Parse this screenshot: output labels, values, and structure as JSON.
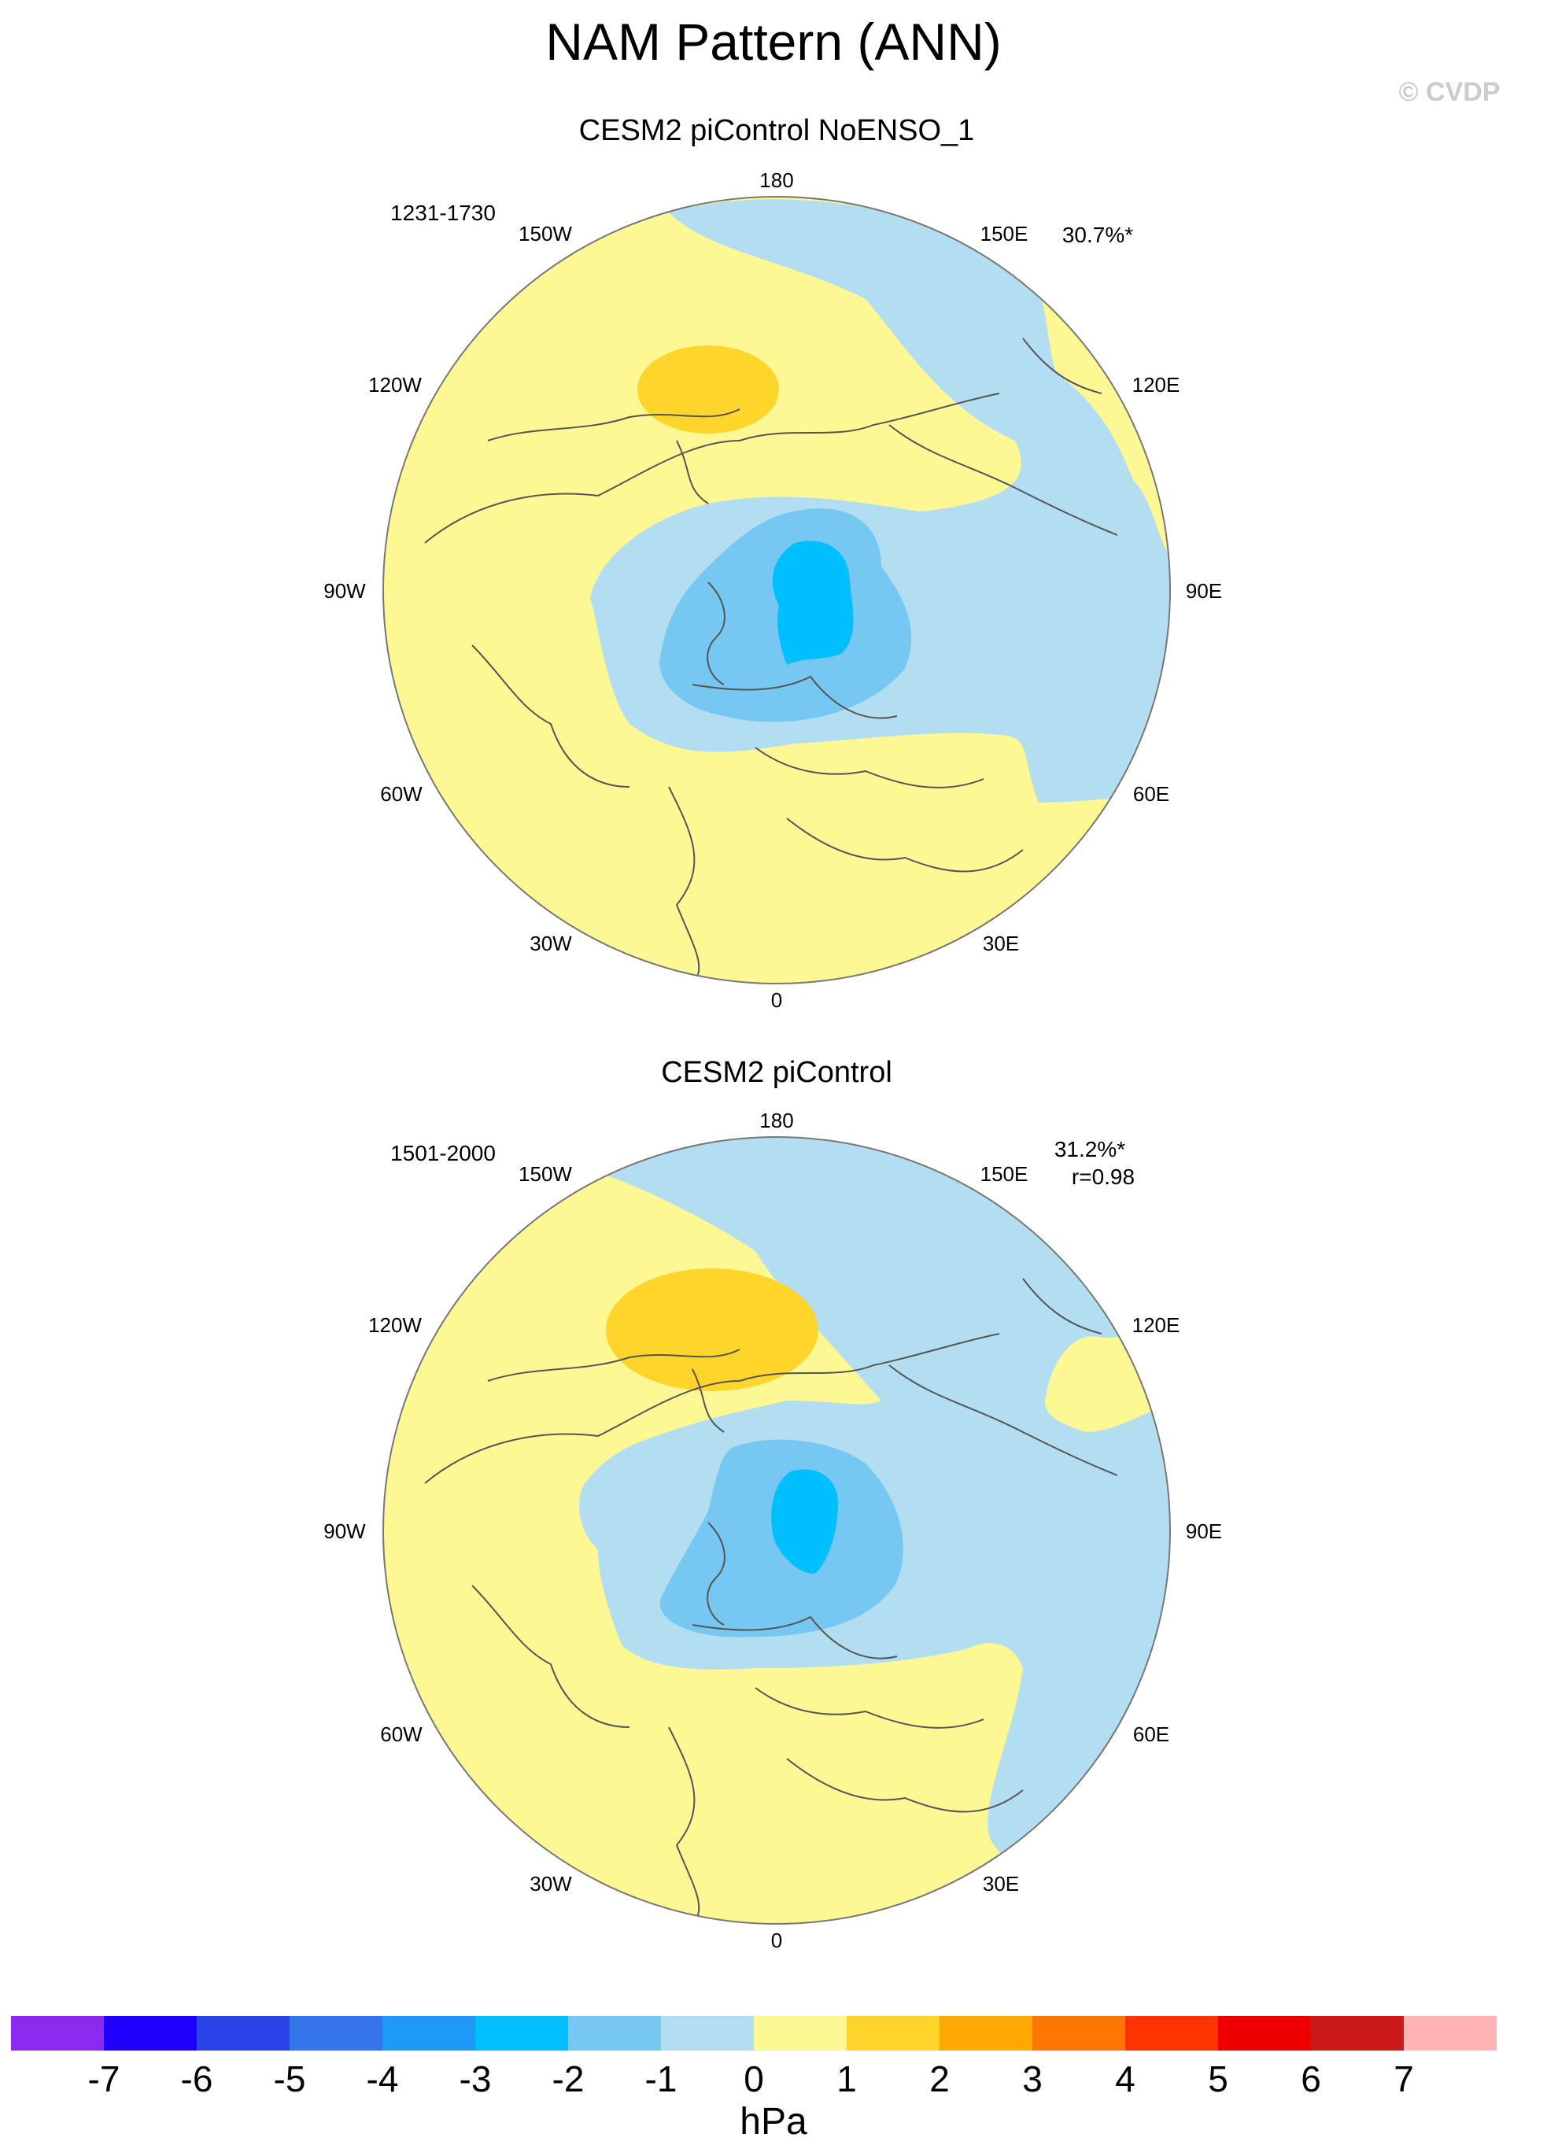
{
  "title": "NAM Pattern (ANN)",
  "watermark": "© CVDP",
  "panels": [
    {
      "title": "CESM2 piControl NoENSO_1",
      "years": "1231-1730",
      "variance": "30.7%*",
      "correlation": "",
      "lon_labels": {
        "180": "180",
        "150W": "150W",
        "150E": "150E",
        "120W": "120W",
        "120E": "120E",
        "90W": "90W",
        "90E": "90E",
        "60W": "60W",
        "60E": "60E",
        "30W": "30W",
        "30E": "30E",
        "0": "0"
      }
    },
    {
      "title": "CESM2 piControl",
      "years": "1501-2000",
      "variance": "31.2%*",
      "correlation": "r=0.98",
      "lon_labels": {
        "180": "180",
        "150W": "150W",
        "150E": "150E",
        "120W": "120W",
        "120E": "120E",
        "90W": "90W",
        "90E": "90E",
        "60W": "60W",
        "60E": "60E",
        "30W": "30W",
        "30E": "30E",
        "0": "0"
      }
    }
  ],
  "colorbar": {
    "unit": "hPa",
    "labels": [
      "-7",
      "-6",
      "-5",
      "-4",
      "-3",
      "-2",
      "-1",
      "0",
      "1",
      "2",
      "3",
      "4",
      "5",
      "6",
      "7"
    ],
    "colors": [
      "#8a2bef",
      "#1f00ff",
      "#2b44ea",
      "#3574ea",
      "#1e99f8",
      "#00bfff",
      "#76c8f2",
      "#b3def1",
      "#fdf794",
      "#ffd42b",
      "#ffa800",
      "#ff7700",
      "#ff3300",
      "#ee0000",
      "#cc1a1a",
      "#ffb3b3"
    ]
  },
  "map_colors": {
    "ocean_bg": "#fdf794",
    "level_neg1": "#b3def1",
    "level_neg2": "#76c8f2",
    "level_neg3": "#00bfff",
    "level_pos1": "#ffd42b",
    "coast": "#555555"
  }
}
